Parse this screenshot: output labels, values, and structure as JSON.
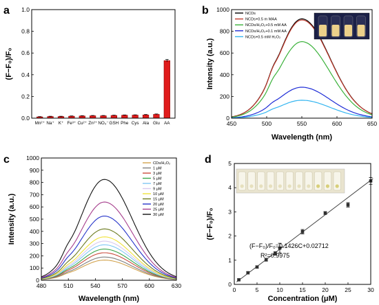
{
  "panels": {
    "a": {
      "letter": "a"
    },
    "b": {
      "letter": "b"
    },
    "c": {
      "letter": "c"
    },
    "d": {
      "letter": "d"
    }
  },
  "colors": {
    "bar_fill": "#e01b1b",
    "bar_edge": "#8b0000",
    "fit_line": "#444444",
    "marker": "#303030",
    "vial_glow": "#ecd08a",
    "well_bg": "#e9e4cf"
  },
  "chart_data": [
    {
      "panel": "a",
      "type": "bar",
      "ylabel": "(F−F₀)/F₀",
      "ylim": [
        0.0,
        1.0
      ],
      "yticks": [
        "0.0",
        "0.2",
        "0.4",
        "0.6",
        "0.8",
        "1.0"
      ],
      "categories": [
        "Mn²⁺",
        "Na⁺",
        "K⁺",
        "Fe³⁺",
        "Cu²⁺",
        "Zn²⁺",
        "NO₃⁻",
        "GSH",
        "Phe",
        "Cys",
        "Ala",
        "Glu",
        "AA"
      ],
      "values": [
        0.012,
        0.015,
        0.015,
        0.018,
        0.02,
        0.022,
        0.022,
        0.025,
        0.027,
        0.028,
        0.03,
        0.035,
        0.53
      ],
      "errors": [
        0.003,
        0.003,
        0.003,
        0.003,
        0.003,
        0.003,
        0.003,
        0.003,
        0.003,
        0.003,
        0.004,
        0.004,
        0.012
      ]
    },
    {
      "panel": "b",
      "type": "line",
      "xlabel": "Wavelength (nm)",
      "ylabel": "Intensity (a.u.)",
      "xlim": [
        450,
        650
      ],
      "ylim": [
        0,
        1000
      ],
      "xticks": [
        "450",
        "500",
        "550",
        "600",
        "650"
      ],
      "yticks": [
        "0",
        "200",
        "400",
        "600",
        "800",
        "1000"
      ],
      "legend": "top-left",
      "series": [
        {
          "name": "NCDs",
          "color": "#000000",
          "peak": 915
        },
        {
          "name": "NCDs+0.5 m MAA",
          "color": "#c0392b",
          "peak": 905
        },
        {
          "name": "NCDs/H₂O₂+0.5 mM AA",
          "color": "#39b139",
          "peak": 705
        },
        {
          "name": "NCDs/H₂O₂+0.1 mM AA",
          "color": "#1c2bd6",
          "peak": 285
        },
        {
          "name": "NCDs+0.5 mM H₂O₂",
          "color": "#33b5f0",
          "peak": 165
        }
      ]
    },
    {
      "panel": "c",
      "type": "line",
      "xlabel": "Wavelength (nm)",
      "ylabel": "Intensity (a.u.)",
      "xlim": [
        480,
        630
      ],
      "ylim": [
        0,
        1000
      ],
      "xticks": [
        "480",
        "510",
        "540",
        "570",
        "600",
        "630"
      ],
      "yticks": [
        "0",
        "100",
        "200",
        "300",
        "400",
        "500",
        "600",
        "700",
        "800",
        "900",
        "1000"
      ],
      "legend": "top-right",
      "series": [
        {
          "name": "CDs/H₂O₂",
          "color": "#d2a24c",
          "peak": 165
        },
        {
          "name": "1 μM",
          "color": "#7e7e7e",
          "peak": 190
        },
        {
          "name": "3 μM",
          "color": "#c94b3c",
          "peak": 225
        },
        {
          "name": "5 μM",
          "color": "#3aa64a",
          "peak": 255
        },
        {
          "name": "7 μM",
          "color": "#7fc8f3",
          "peak": 290
        },
        {
          "name": "9 μM",
          "color": "#d9c9ee",
          "peak": 320
        },
        {
          "name": "10 μM",
          "color": "#f0e33a",
          "peak": 355
        },
        {
          "name": "15 μM",
          "color": "#6b7a1f",
          "peak": 420
        },
        {
          "name": "20 μM",
          "color": "#2433c9",
          "peak": 525
        },
        {
          "name": "25 μM",
          "color": "#a53d8c",
          "peak": 640
        },
        {
          "name": "30 μM",
          "color": "#111111",
          "peak": 825
        }
      ]
    },
    {
      "panel": "d",
      "type": "scatter",
      "xlabel": "Concentration (μM)",
      "ylabel": "(F−F₀)/F₀",
      "xlim": [
        0,
        30
      ],
      "ylim": [
        0,
        5
      ],
      "xticks": [
        "0",
        "5",
        "10",
        "15",
        "20",
        "25",
        "30"
      ],
      "yticks": [
        "0",
        "1",
        "2",
        "3",
        "4",
        "5"
      ],
      "x": [
        1,
        3,
        5,
        7,
        9,
        10,
        15,
        20,
        25,
        30
      ],
      "y": [
        0.19,
        0.48,
        0.72,
        1.02,
        1.28,
        1.5,
        2.18,
        2.95,
        3.29,
        4.28
      ],
      "errors": [
        0.04,
        0.05,
        0.05,
        0.06,
        0.07,
        0.2,
        0.09,
        0.06,
        0.09,
        0.14
      ],
      "fit": {
        "slope": 0.1426,
        "intercept": 0.02712
      },
      "annotations": [
        "(F−F₀)/F₀=0.1426C+0.02712",
        "R²=0.9975"
      ]
    }
  ]
}
